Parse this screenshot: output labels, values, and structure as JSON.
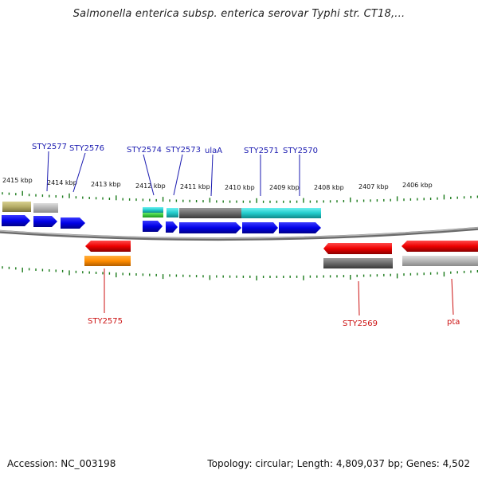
{
  "title": "Salmonella enterica subsp. enterica serovar Typhi str. CT18,...",
  "footer": {
    "accession": "Accession: NC_003198",
    "summary": "Topology: circular; Length: 4,809,037 bp; Genes: 4,502"
  },
  "kbp_labels": [
    "2415 kbp",
    "2414 kbp",
    "2413 kbp",
    "2412 kbp",
    "2411 kbp",
    "2410 kbp",
    "2409 kbp",
    "2408 kbp",
    "2407 kbp",
    "2406 kbp"
  ],
  "genes_top": [
    {
      "name": "STY2577",
      "color": "#1a1ab0"
    },
    {
      "name": "STY2576",
      "color": "#1a1ab0"
    },
    {
      "name": "STY2574",
      "color": "#1a1ab0"
    },
    {
      "name": "STY2573",
      "color": "#1a1ab0"
    },
    {
      "name": "ulaA",
      "color": "#1a1ab0"
    },
    {
      "name": "STY2571",
      "color": "#1a1ab0"
    },
    {
      "name": "STY2570",
      "color": "#1a1ab0"
    }
  ],
  "genes_bottom": [
    {
      "name": "STY2575",
      "color": "#cc1111"
    },
    {
      "name": "STY2569",
      "color": "#cc1111"
    },
    {
      "name": "pta",
      "color": "#cc1111"
    }
  ],
  "colors": {
    "forward_gene": "#0000ee",
    "reverse_gene": "#ee0000",
    "backbone": "#888888",
    "ticks": "#1a7a1a"
  }
}
